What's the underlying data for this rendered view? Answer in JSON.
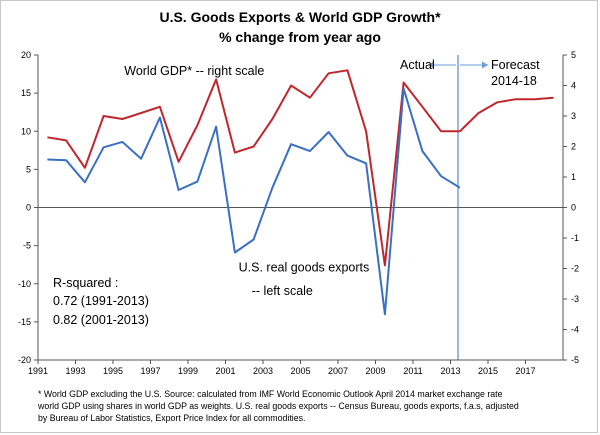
{
  "chart_data": {
    "type": "line",
    "title": "U.S. Goods Exports & World GDP Growth*",
    "subtitle": "% change from year ago",
    "x": [
      1991,
      1992,
      1993,
      1994,
      1995,
      1996,
      1997,
      1998,
      1999,
      2000,
      2001,
      2002,
      2003,
      2004,
      2005,
      2006,
      2007,
      2008,
      2009,
      2010,
      2011,
      2012,
      2013,
      2014,
      2015,
      2016,
      2017,
      2018
    ],
    "x_ticks": [
      "1991",
      "1993",
      "1995",
      "1997",
      "1999",
      "2001",
      "2003",
      "2005",
      "2007",
      "2009",
      "2011",
      "2013",
      "2015",
      "2017"
    ],
    "left_axis": {
      "ylim": [
        -20,
        20
      ],
      "ticks": [
        "20",
        "15",
        "10",
        "5",
        "0",
        "-5",
        "-10",
        "-15",
        "-20"
      ]
    },
    "right_axis": {
      "ylim": [
        -5,
        5
      ],
      "ticks": [
        "5",
        "4",
        "3",
        "2",
        "1",
        "0",
        "-1",
        "-2",
        "-3",
        "-4",
        "-5"
      ]
    },
    "series": [
      {
        "name": "World GDP* -- right scale",
        "axis": "right",
        "color": "#c0272d",
        "values": [
          2.3,
          2.2,
          1.3,
          3.0,
          2.9,
          3.1,
          3.3,
          1.5,
          2.7,
          4.2,
          1.8,
          2.0,
          2.9,
          4.0,
          3.6,
          4.4,
          4.5,
          2.5,
          -1.9,
          4.1,
          3.3,
          2.5,
          2.5,
          3.1,
          3.45,
          3.55,
          3.55,
          3.6
        ]
      },
      {
        "name": "U.S. real goods exports -- left scale",
        "axis": "left",
        "color": "#3a6fc4",
        "values": [
          6.3,
          6.2,
          3.3,
          7.9,
          8.6,
          6.4,
          11.8,
          2.3,
          3.4,
          10.6,
          -5.9,
          -4.2,
          2.6,
          8.3,
          7.4,
          9.9,
          6.8,
          5.8,
          -14.0,
          15.6,
          7.4,
          4.1,
          2.6,
          null,
          null,
          null,
          null,
          null
        ]
      }
    ],
    "annotations": {
      "world_gdp_label": "World GDP* -- right scale",
      "exports_label_1": "U.S. real goods exports",
      "exports_label_2": "-- left scale",
      "actual": "Actual",
      "forecast_1": "Forecast",
      "forecast_2": "2014-18",
      "divider_x": 2013.4,
      "r_squared_title": "R-squared :",
      "r_squared_1": "0.72 (1991-2013)",
      "r_squared_2": "0.82 (2001-2013)"
    },
    "footnote": [
      "* World GDP excluding the U.S.  Source:  calculated from IMF World Economic Outlook April 2014  market exchange rate",
      "world GDP using shares in world GDP as weights.    U.S. real goods exports -- Census Bureau, goods exports, f.a.s, adjusted",
      "by Bureau of Labor Statistics, Export Price Index for all commodities."
    ],
    "grid": false,
    "legend": "none"
  }
}
